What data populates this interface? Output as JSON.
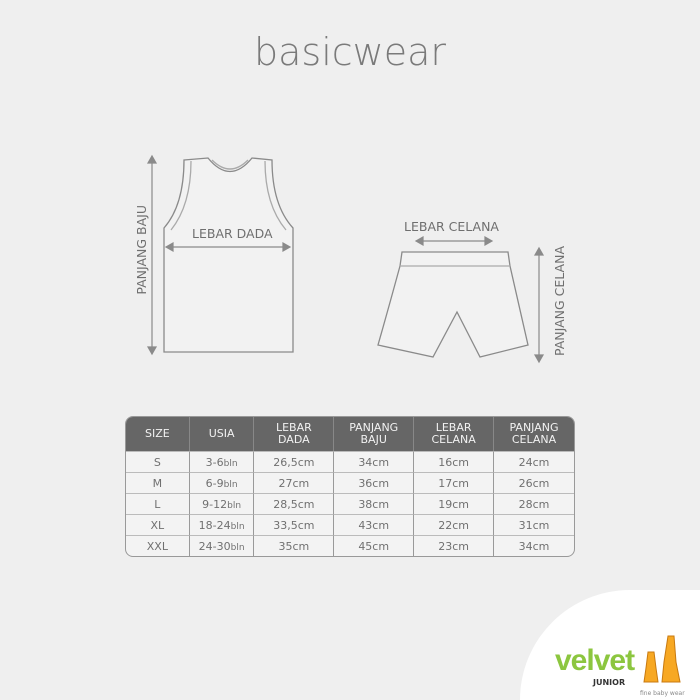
{
  "title": "basicwear",
  "diagram": {
    "top_width": "LEBAR DADA",
    "top_length": "PANJANG BAJU",
    "shorts_width": "LEBAR CELANA",
    "shorts_length": "PANJANG CELANA"
  },
  "table": {
    "headers": [
      [
        "SIZE",
        ""
      ],
      [
        "USIA",
        ""
      ],
      [
        "LEBAR",
        "DADA"
      ],
      [
        "PANJANG",
        "BAJU"
      ],
      [
        "LEBAR",
        "CELANA"
      ],
      [
        "PANJANG",
        "CELANA"
      ]
    ],
    "unit_age": "bln",
    "rows": [
      [
        "S",
        "3-6",
        "26,5cm",
        "34cm",
        "16cm",
        "24cm"
      ],
      [
        "M",
        "6-9",
        "27cm",
        "36cm",
        "17cm",
        "26cm"
      ],
      [
        "L",
        "9-12",
        "28,5cm",
        "38cm",
        "19cm",
        "28cm"
      ],
      [
        "XL",
        "18-24",
        "33,5cm",
        "43cm",
        "22cm",
        "31cm"
      ],
      [
        "XXL",
        "24-30",
        "35cm",
        "45cm",
        "23cm",
        "34cm"
      ]
    ]
  },
  "brand": {
    "name": "velvet",
    "sub": "JUNIOR",
    "tagline": "fine baby wear",
    "color": "#8cc63f"
  }
}
